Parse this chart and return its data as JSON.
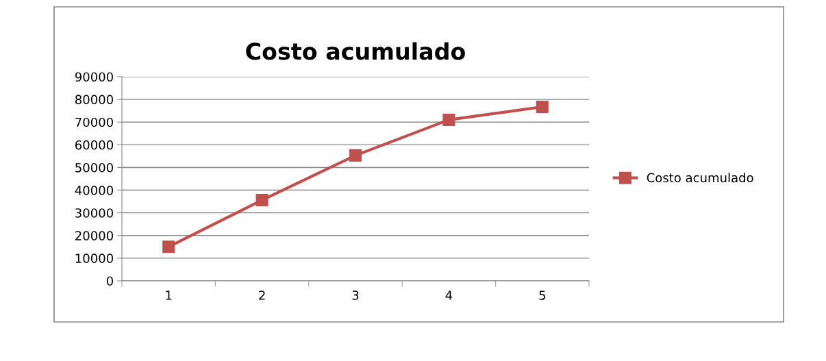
{
  "chart_data": {
    "type": "line",
    "title": "Costo acumulado",
    "categories": [
      "1",
      "2",
      "3",
      "4",
      "5"
    ],
    "series": [
      {
        "name": "Costo acumulado",
        "color": "#c0504d",
        "values": [
          15000,
          35600,
          55300,
          71000,
          76700
        ]
      }
    ],
    "ylim": [
      0,
      90000
    ],
    "yticks": [
      0,
      10000,
      20000,
      30000,
      40000,
      50000,
      60000,
      70000,
      80000,
      90000
    ],
    "grid": "y",
    "legend": "right",
    "marker": "square",
    "line_style": "solid"
  }
}
